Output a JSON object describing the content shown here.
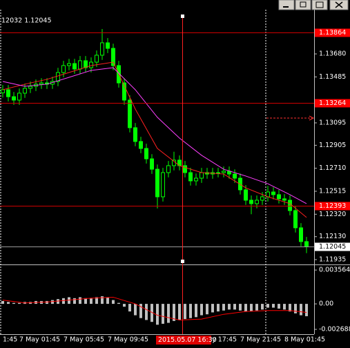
{
  "top_text": "12032 1.12045",
  "chart_data": [
    {
      "type": "candlestick",
      "categories": [
        "1:45",
        null,
        null,
        "7 May 01:45",
        null,
        null,
        null,
        null,
        null,
        null,
        null,
        "7 May 05:45",
        null,
        null,
        null,
        null,
        null,
        null,
        null,
        "7 May 09:45",
        null,
        null,
        null,
        null,
        null,
        null,
        null,
        null,
        null,
        null,
        null,
        null,
        null,
        null,
        null,
        "7 May 17:45",
        null,
        null,
        null,
        null,
        null,
        null,
        null,
        "7 May 21:45",
        null,
        null,
        null,
        null,
        null,
        null,
        null,
        "8 May 01:45",
        null,
        null,
        null,
        null
      ],
      "open": [
        1.1335,
        1.13376,
        1.13317,
        1.13288,
        1.13347,
        1.13388,
        1.13405,
        1.13423,
        1.13434,
        1.13423,
        1.13446,
        1.13522,
        1.13581,
        1.13598,
        1.13552,
        1.13622,
        1.13563,
        1.1361,
        1.13669,
        1.13774,
        1.13727,
        1.13581,
        1.13434,
        1.13288,
        1.13054,
        1.12937,
        1.12878,
        1.1279,
        1.12702,
        1.12468,
        1.12673,
        1.12732,
        1.12779,
        1.12732,
        1.12673,
        1.12603,
        1.12626,
        1.12673,
        1.12661,
        1.12673,
        1.12673,
        1.12685,
        1.12661,
        1.12626,
        1.12527,
        1.12439,
        1.1241,
        1.12439,
        1.12468,
        1.12509,
        1.12486,
        1.12451,
        1.12439,
        1.12351,
        1.12205,
        1.12088
      ],
      "high": [
        1.13416,
        1.13416,
        1.13357,
        1.13387,
        1.13428,
        1.13445,
        1.13463,
        1.13474,
        1.13474,
        1.13486,
        1.13562,
        1.13621,
        1.13638,
        1.13638,
        1.13662,
        1.13662,
        1.1365,
        1.13709,
        1.13891,
        1.13814,
        1.13767,
        1.13621,
        1.13474,
        1.13328,
        1.13094,
        1.12977,
        1.12918,
        1.1283,
        1.12742,
        1.12713,
        1.12772,
        1.1285,
        1.12819,
        1.12772,
        1.12713,
        1.12666,
        1.12713,
        1.12713,
        1.12713,
        1.12713,
        1.12725,
        1.12725,
        1.12701,
        1.12666,
        1.12567,
        1.12479,
        1.12479,
        1.12508,
        1.1256,
        1.12549,
        1.12526,
        1.12491,
        1.12479,
        1.12391,
        1.12245,
        1.12128
      ],
      "low": [
        1.1331,
        1.13277,
        1.13248,
        1.13248,
        1.13307,
        1.13348,
        1.13365,
        1.13383,
        1.13383,
        1.13383,
        1.13406,
        1.13482,
        1.13541,
        1.13512,
        1.13512,
        1.13523,
        1.13523,
        1.1357,
        1.13629,
        1.13687,
        1.13541,
        1.13394,
        1.13248,
        1.13014,
        1.12897,
        1.12838,
        1.1275,
        1.12662,
        1.12369,
        1.12428,
        1.12633,
        1.12692,
        1.12692,
        1.12633,
        1.12563,
        1.12563,
        1.12586,
        1.12621,
        1.12621,
        1.12633,
        1.12633,
        1.12621,
        1.12586,
        1.12487,
        1.12399,
        1.1232,
        1.1237,
        1.12399,
        1.12428,
        1.12446,
        1.12411,
        1.12399,
        1.12311,
        1.12165,
        1.12048,
        1.1199
      ],
      "close": [
        1.13376,
        1.13317,
        1.13288,
        1.13347,
        1.13388,
        1.13405,
        1.13423,
        1.13434,
        1.13423,
        1.13446,
        1.13522,
        1.13581,
        1.13598,
        1.13552,
        1.13622,
        1.13563,
        1.1361,
        1.13669,
        1.13774,
        1.13727,
        1.13581,
        1.13434,
        1.13288,
        1.13054,
        1.12937,
        1.12878,
        1.1279,
        1.12702,
        1.12468,
        1.12673,
        1.12732,
        1.12779,
        1.12732,
        1.12673,
        1.12603,
        1.12626,
        1.12673,
        1.12661,
        1.12673,
        1.12673,
        1.12685,
        1.12661,
        1.12626,
        1.12527,
        1.12439,
        1.1241,
        1.12439,
        1.12468,
        1.12509,
        1.12486,
        1.12451,
        1.12439,
        1.12351,
        1.12205,
        1.12088,
        1.12045
      ],
      "color": "#00ff00",
      "lines": [
        {
          "color": "#ff2020",
          "x": [
            0,
            4,
            8,
            12,
            16,
            20,
            24,
            28,
            32,
            36,
            40,
            44,
            48,
            52,
            55
          ],
          "values": [
            1.13376,
            1.13423,
            1.13464,
            1.13522,
            1.13581,
            1.1361,
            1.13212,
            1.12878,
            1.12732,
            1.12673,
            1.12661,
            1.12544,
            1.12468,
            1.1241,
            1.12293
          ]
        },
        {
          "color": "#ff40ff",
          "x": [
            0,
            4,
            8,
            12,
            16,
            20,
            24,
            28,
            32,
            36,
            40,
            44,
            48,
            52,
            55
          ],
          "values": [
            1.13446,
            1.13405,
            1.13423,
            1.13481,
            1.1354,
            1.13563,
            1.13376,
            1.13142,
            1.12966,
            1.1282,
            1.12702,
            1.12644,
            1.12579,
            1.12486,
            1.1241
          ]
        }
      ],
      "ylim": [
        1.119,
        1.1402
      ],
      "yticks": [
        {
          "value": 1.1368,
          "label": "1.13680"
        },
        1.13485,
        1.13095,
        1.12905,
        {
          "value": 1.1271,
          "label": "1.12710"
        },
        1.12515,
        {
          "value": 1.1232,
          "label": "1.12320"
        },
        {
          "value": 1.1213,
          "label": "1.12130"
        },
        1.11935
      ],
      "levels": [
        {
          "value": 1.13864,
          "color": "#ff0000"
        },
        {
          "value": 1.13264,
          "color": "#ff0000"
        },
        {
          "value": 1.12393,
          "color": "#ff0000"
        },
        {
          "value": 1.12045,
          "color": "#ffffff"
        }
      ],
      "crosshair_label": "2015.05.07 16:30"
    },
    {
      "type": "macd",
      "histogram": [
        0.0003,
        0.0002,
        0.0001,
        0.0001,
        0.0002,
        0.0002,
        0.0003,
        0.0003,
        0.0003,
        0.0004,
        0.0005,
        0.0006,
        0.0007,
        0.0006,
        0.0007,
        0.0006,
        0.0006,
        0.0007,
        0.0008,
        0.0007,
        0.0004,
        0.0001,
        -0.0003,
        -0.0008,
        -0.0012,
        -0.0015,
        -0.0017,
        -0.0019,
        -0.0022,
        -0.0021,
        -0.002,
        -0.0018,
        -0.0017,
        -0.0016,
        -0.0015,
        -0.0014,
        -0.0012,
        -0.0011,
        -0.0009,
        -0.0008,
        -0.0007,
        -0.0006,
        -0.0006,
        -0.0007,
        -0.0008,
        -0.0008,
        -0.0007,
        -0.0006,
        -0.0004,
        -0.0004,
        -0.0005,
        -0.0006,
        -0.0008,
        -0.001,
        -0.0012,
        -0.0013
      ],
      "histogram_color": "#c0c0c0",
      "signal": {
        "color": "#ff0000",
        "x": [
          0,
          4,
          8,
          12,
          16,
          20,
          24,
          28,
          32,
          36,
          40,
          44,
          48,
          52,
          55
        ],
        "values": [
          0.0004,
          0.0001,
          0.0002,
          0.0004,
          0.0006,
          0.0007,
          0.0,
          -0.0012,
          -0.0017,
          -0.0016,
          -0.0011,
          -0.0008,
          -0.0007,
          -0.0007,
          -0.0009
        ]
      },
      "ylim": [
        -0.00305,
        0.00408
      ],
      "yticks": [
        0.003564,
        {
          "value": 0,
          "label": "0.00"
        },
        -0.002688
      ]
    }
  ]
}
